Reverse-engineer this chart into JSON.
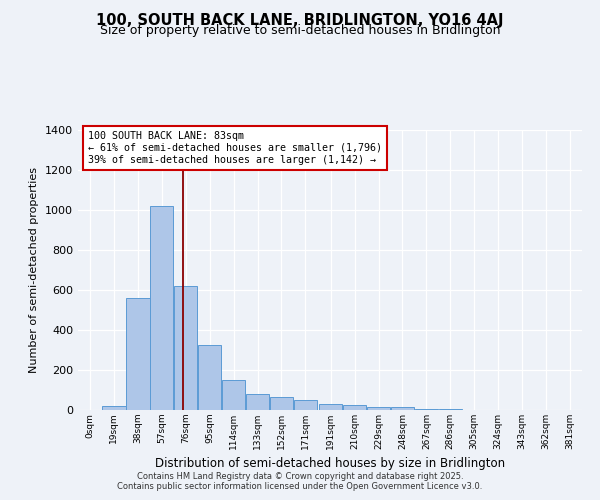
{
  "title": "100, SOUTH BACK LANE, BRIDLINGTON, YO16 4AJ",
  "subtitle": "Size of property relative to semi-detached houses in Bridlington",
  "xlabel": "Distribution of semi-detached houses by size in Bridlington",
  "ylabel": "Number of semi-detached properties",
  "bin_labels": [
    "0sqm",
    "19sqm",
    "38sqm",
    "57sqm",
    "76sqm",
    "95sqm",
    "114sqm",
    "133sqm",
    "152sqm",
    "171sqm",
    "191sqm",
    "210sqm",
    "229sqm",
    "248sqm",
    "267sqm",
    "286sqm",
    "305sqm",
    "324sqm",
    "343sqm",
    "362sqm",
    "381sqm"
  ],
  "bin_edges": [
    0,
    19,
    38,
    57,
    76,
    95,
    114,
    133,
    152,
    171,
    191,
    210,
    229,
    248,
    267,
    286,
    305,
    324,
    343,
    362,
    381
  ],
  "bar_heights": [
    0,
    20,
    560,
    1020,
    620,
    325,
    150,
    80,
    65,
    50,
    30,
    25,
    15,
    15,
    5,
    5,
    0,
    0,
    0,
    0
  ],
  "bar_color": "#aec6e8",
  "bar_edge_color": "#5b9bd5",
  "property_size": 83,
  "vline_color": "#8b0000",
  "annotation_title": "100 SOUTH BACK LANE: 83sqm",
  "annotation_line1": "← 61% of semi-detached houses are smaller (1,796)",
  "annotation_line2": "39% of semi-detached houses are larger (1,142) →",
  "annotation_box_color": "#ffffff",
  "annotation_border_color": "#cc0000",
  "ylim": [
    0,
    1400
  ],
  "yticks": [
    0,
    200,
    400,
    600,
    800,
    1000,
    1200,
    1400
  ],
  "footer1": "Contains HM Land Registry data © Crown copyright and database right 2025.",
  "footer2": "Contains public sector information licensed under the Open Government Licence v3.0.",
  "bg_color": "#eef2f8",
  "title_fontsize": 10.5,
  "subtitle_fontsize": 9
}
